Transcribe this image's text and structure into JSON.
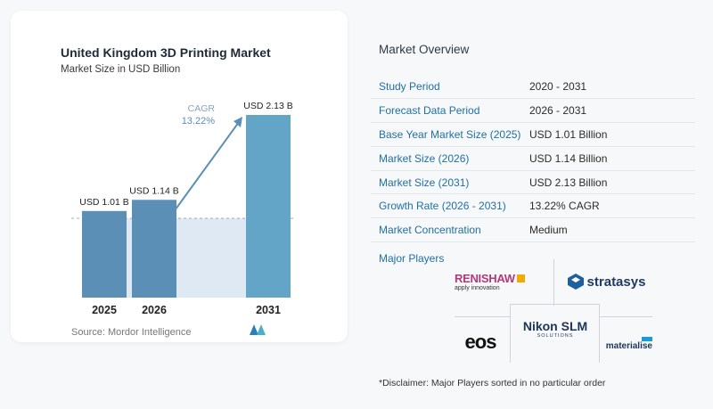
{
  "chart_data": {
    "type": "bar",
    "title": "United Kingdom 3D Printing Market",
    "subtitle": "Market Size in USD Billion",
    "categories": [
      "2025",
      "2026",
      "2031"
    ],
    "values": [
      1.01,
      1.14,
      2.13
    ],
    "data_labels": [
      "USD 1.01 B",
      "USD 1.14 B",
      "USD 2.13 B"
    ],
    "ylim": [
      0,
      2.13
    ],
    "cagr_label": "CAGR",
    "cagr_value": "13.22%",
    "bar_colors": [
      "#5b8fb6",
      "#5b8fb6",
      "#63a5c7"
    ],
    "baseline_color": "#dfe9f3"
  },
  "source_text": "Source:  Mordor Intelligence",
  "overview": {
    "title": "Market Overview",
    "rows": [
      {
        "label": "Study Period",
        "value": "2020 - 2031"
      },
      {
        "label": "Forecast Data Period",
        "value": "2026 - 2031"
      },
      {
        "label": "Base Year Market Size (2025)",
        "value": "USD 1.01 Billion"
      },
      {
        "label": "Market Size (2026)",
        "value": "USD 1.14 Billion"
      },
      {
        "label": "Market Size (2031)",
        "value": "USD 2.13 Billion"
      },
      {
        "label": "Growth Rate (2026 - 2031)",
        "value": "13.22% CAGR"
      },
      {
        "label": "Market Concentration",
        "value": "Medium"
      }
    ]
  },
  "players": {
    "title": "Major Players",
    "renishaw": "RENISHAW",
    "renishaw_tag": "apply innovation",
    "stratasys": "stratasys",
    "eos": "eos",
    "nikon": "Nikon SLM",
    "nikon_tag": "SOLUTIONS",
    "materialise": "materialise"
  },
  "disclaimer": "*Disclaimer: Major Players sorted in no particular order"
}
